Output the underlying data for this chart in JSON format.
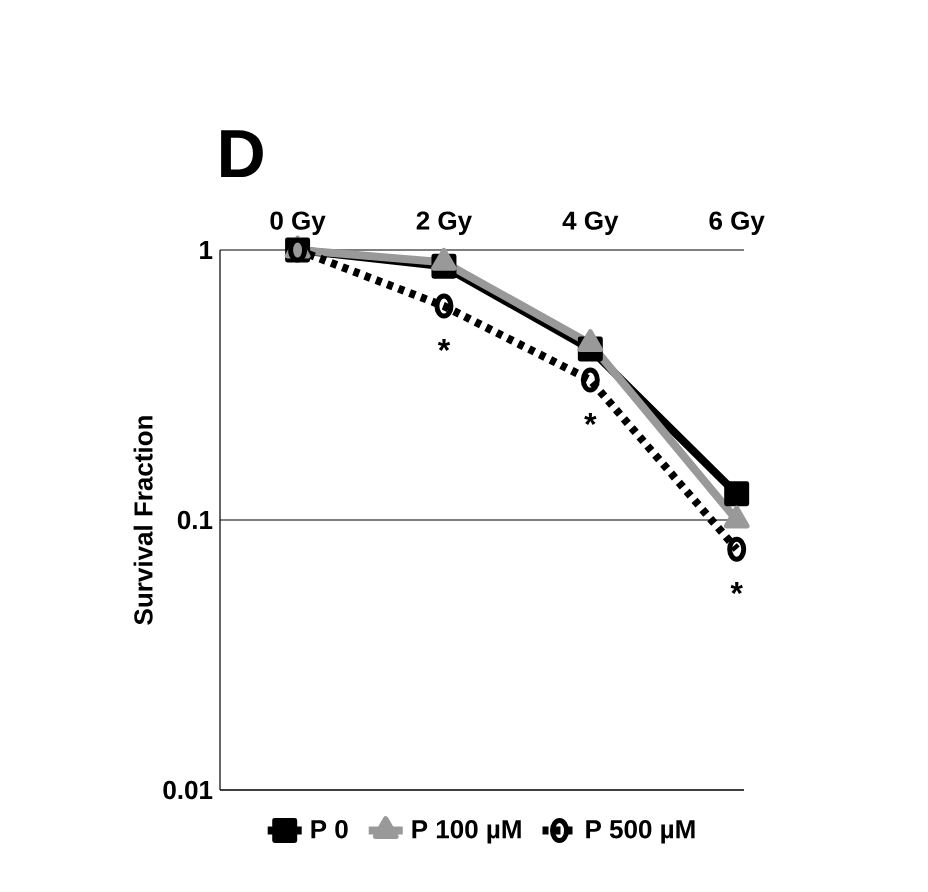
{
  "chart_data": {
    "type": "line",
    "title": "D",
    "ylabel": "Survival Fraction",
    "categories": [
      "0 Gy",
      "2 Gy",
      "4 Gy",
      "6 Gy"
    ],
    "series": [
      {
        "name": "P 0",
        "color": "#000000",
        "marker": "square",
        "line_style": "solid",
        "values": [
          1,
          0.87,
          0.43,
          0.125
        ]
      },
      {
        "name": "P 100 µM",
        "color": "#999999",
        "marker": "triangle",
        "line_style": "solid",
        "values": [
          1,
          0.9,
          0.45,
          0.1
        ]
      },
      {
        "name": "P 500 µM",
        "color": "#000000",
        "marker": "circle",
        "line_style": "dotted",
        "values": [
          1,
          0.62,
          0.33,
          0.078
        ]
      }
    ],
    "annotations": [
      "*",
      "*",
      "*"
    ],
    "log": "y",
    "ylim": [
      0.01,
      1
    ],
    "yticks": [
      {
        "value": 0.01,
        "label": "0.01"
      },
      {
        "value": 0.1,
        "label": "0.1"
      },
      {
        "value": 1,
        "label": "1"
      }
    ],
    "grid": "y",
    "legend": "bottom"
  }
}
